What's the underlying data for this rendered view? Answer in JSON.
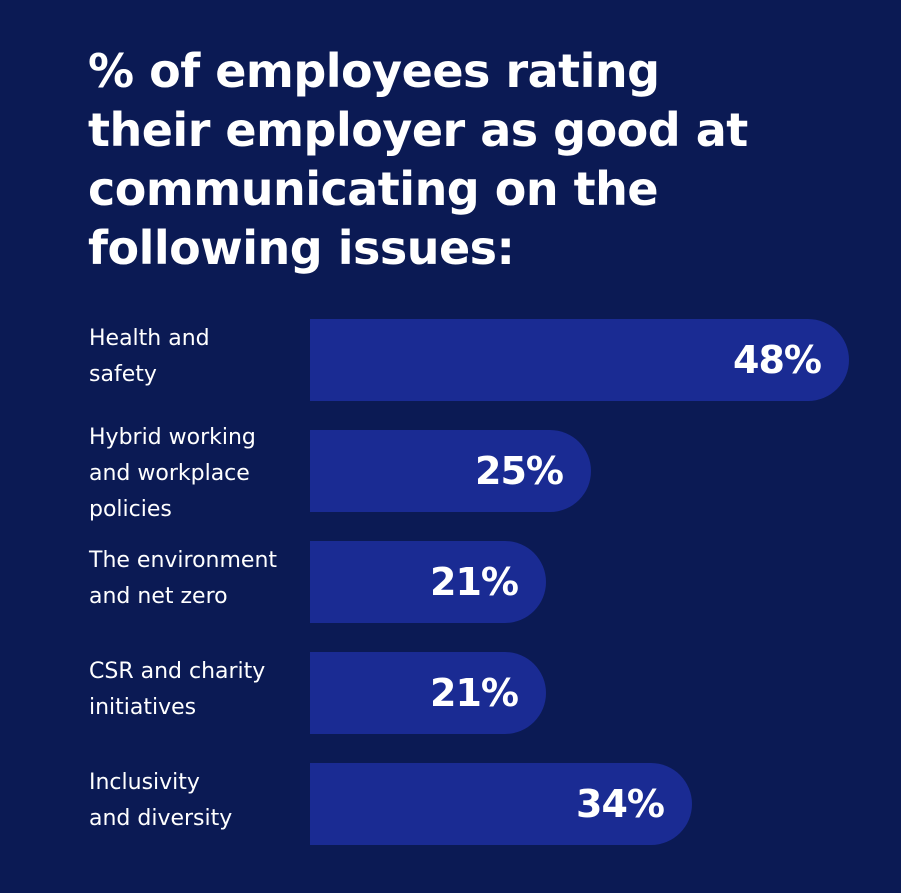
{
  "background_color": "#0b1a54",
  "bar_color": "#1a2b93",
  "chart_data": {
    "type": "bar",
    "orientation": "horizontal",
    "title": "% of employees rating\ntheir employer as good at\ncommunicating on the\nfollowing issues:",
    "categories": [
      "Health and\nsafety",
      "Hybrid working\nand workplace\npolicies",
      "The environment\nand net zero",
      "CSR and charity\ninitiatives",
      "Inclusivity\nand diversity"
    ],
    "values": [
      48,
      25,
      21,
      21,
      34
    ],
    "value_labels": [
      "48%",
      "25%",
      "21%",
      "21%",
      "34%"
    ],
    "xlim": [
      0,
      48
    ],
    "grid": false,
    "legend": "none"
  }
}
